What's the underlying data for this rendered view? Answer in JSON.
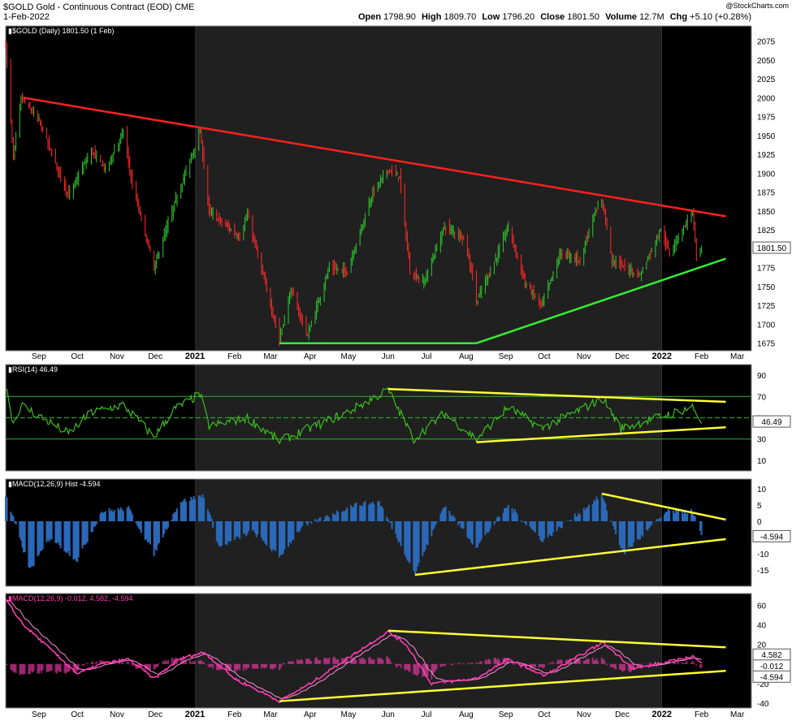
{
  "header": {
    "symbol": "$GOLD",
    "name": "Gold - Continuous Contract (EOD)",
    "exchange": "CME",
    "date": "1-Feb-2022",
    "watermark": "@StockCharts.com",
    "open_label": "Open",
    "open": "1798.90",
    "high_label": "High",
    "high": "1809.70",
    "low_label": "Low",
    "low": "1796.20",
    "close_label": "Close",
    "close": "1801.50",
    "volume_label": "Volume",
    "volume": "12.7M",
    "chg_label": "Chg",
    "chg": "+5.10 (+0.28%)"
  },
  "x_axis": {
    "labels": [
      "Sep",
      "Oct",
      "Nov",
      "Dec",
      "2021",
      "Feb",
      "Mar",
      "Apr",
      "May",
      "Jun",
      "Jul",
      "Aug",
      "Sep",
      "Oct",
      "Nov",
      "Dec",
      "2022",
      "Feb",
      "Mar"
    ],
    "bold": [
      false,
      false,
      false,
      false,
      true,
      false,
      false,
      false,
      false,
      false,
      false,
      false,
      false,
      false,
      false,
      false,
      true,
      false,
      false
    ]
  },
  "chart_data": [
    {
      "type": "candlestick",
      "title": "$GOLD (Daily) 1801.50 (1 Feb)",
      "ylim": [
        1665,
        2095
      ],
      "y_ticks": [
        1675,
        1700,
        1725,
        1750,
        1775,
        1800,
        1825,
        1850,
        1875,
        1900,
        1925,
        1950,
        1975,
        2000,
        2025,
        2050,
        2075
      ],
      "last_value_label": "1801.50",
      "anchors": [
        {
          "d": "2020-08-06",
          "v": 2070
        },
        {
          "d": "2020-08-12",
          "v": 1920
        },
        {
          "d": "2020-08-18",
          "v": 2000
        },
        {
          "d": "2020-09-01",
          "v": 1970
        },
        {
          "d": "2020-09-24",
          "v": 1870
        },
        {
          "d": "2020-10-12",
          "v": 1930
        },
        {
          "d": "2020-10-23",
          "v": 1905
        },
        {
          "d": "2020-11-06",
          "v": 1955
        },
        {
          "d": "2020-11-13",
          "v": 1885
        },
        {
          "d": "2020-11-30",
          "v": 1775
        },
        {
          "d": "2020-12-16",
          "v": 1860
        },
        {
          "d": "2021-01-05",
          "v": 1955
        },
        {
          "d": "2021-01-12",
          "v": 1850
        },
        {
          "d": "2021-02-05",
          "v": 1815
        },
        {
          "d": "2021-02-11",
          "v": 1845
        },
        {
          "d": "2021-03-02",
          "v": 1720
        },
        {
          "d": "2021-03-08",
          "v": 1680
        },
        {
          "d": "2021-03-17",
          "v": 1745
        },
        {
          "d": "2021-03-30",
          "v": 1685
        },
        {
          "d": "2021-04-16",
          "v": 1775
        },
        {
          "d": "2021-04-30",
          "v": 1770
        },
        {
          "d": "2021-05-20",
          "v": 1875
        },
        {
          "d": "2021-06-01",
          "v": 1905
        },
        {
          "d": "2021-06-10",
          "v": 1895
        },
        {
          "d": "2021-06-18",
          "v": 1770
        },
        {
          "d": "2021-06-29",
          "v": 1755
        },
        {
          "d": "2021-07-15",
          "v": 1830
        },
        {
          "d": "2021-07-30",
          "v": 1815
        },
        {
          "d": "2021-08-06",
          "v": 1765
        },
        {
          "d": "2021-08-09",
          "v": 1730
        },
        {
          "d": "2021-08-25",
          "v": 1790
        },
        {
          "d": "2021-09-03",
          "v": 1830
        },
        {
          "d": "2021-09-16",
          "v": 1755
        },
        {
          "d": "2021-09-29",
          "v": 1725
        },
        {
          "d": "2021-10-14",
          "v": 1795
        },
        {
          "d": "2021-10-29",
          "v": 1785
        },
        {
          "d": "2021-11-10",
          "v": 1850
        },
        {
          "d": "2021-11-16",
          "v": 1860
        },
        {
          "d": "2021-11-23",
          "v": 1785
        },
        {
          "d": "2021-12-15",
          "v": 1765
        },
        {
          "d": "2021-12-31",
          "v": 1825
        },
        {
          "d": "2022-01-07",
          "v": 1795
        },
        {
          "d": "2022-01-25",
          "v": 1850
        },
        {
          "d": "2022-01-28",
          "v": 1790
        },
        {
          "d": "2022-02-01",
          "v": 1801.5
        }
      ],
      "trendlines": [
        {
          "color": "#ff2020",
          "points": [
            {
              "d": "2020-08-20",
              "v": 2000
            },
            {
              "d": "2022-02-20",
              "v": 1843
            }
          ]
        },
        {
          "color": "#33ee33",
          "points": [
            {
              "d": "2021-03-08",
              "v": 1675
            },
            {
              "d": "2021-08-09",
              "v": 1675
            }
          ]
        },
        {
          "color": "#33ee33",
          "points": [
            {
              "d": "2021-08-09",
              "v": 1675
            },
            {
              "d": "2022-02-20",
              "v": 1787
            }
          ]
        }
      ]
    },
    {
      "type": "line",
      "title": "RSI(14) 46.49",
      "ylim": [
        0,
        100
      ],
      "y_ticks": [
        10,
        30,
        50,
        70,
        90
      ],
      "reference_lines": [
        70,
        50,
        30
      ],
      "last_value_label": "46.49",
      "series_color": "#3cbe1e",
      "anchors": [
        {
          "d": "2020-08-06",
          "v": 80
        },
        {
          "d": "2020-08-12",
          "v": 45
        },
        {
          "d": "2020-08-18",
          "v": 62
        },
        {
          "d": "2020-09-24",
          "v": 35
        },
        {
          "d": "2020-10-12",
          "v": 55
        },
        {
          "d": "2020-11-06",
          "v": 62
        },
        {
          "d": "2020-11-30",
          "v": 32
        },
        {
          "d": "2020-12-16",
          "v": 58
        },
        {
          "d": "2021-01-05",
          "v": 72
        },
        {
          "d": "2021-01-12",
          "v": 42
        },
        {
          "d": "2021-02-11",
          "v": 50
        },
        {
          "d": "2021-03-08",
          "v": 28
        },
        {
          "d": "2021-04-30",
          "v": 55
        },
        {
          "d": "2021-06-01",
          "v": 76
        },
        {
          "d": "2021-06-21",
          "v": 30
        },
        {
          "d": "2021-07-15",
          "v": 54
        },
        {
          "d": "2021-08-09",
          "v": 30
        },
        {
          "d": "2021-09-03",
          "v": 60
        },
        {
          "d": "2021-09-29",
          "v": 40
        },
        {
          "d": "2021-11-16",
          "v": 68
        },
        {
          "d": "2021-11-30",
          "v": 40
        },
        {
          "d": "2022-01-25",
          "v": 60
        },
        {
          "d": "2022-02-01",
          "v": 46.49
        }
      ],
      "trendlines": [
        {
          "color": "#ffff33",
          "points": [
            {
              "d": "2021-06-01",
              "v": 77
            },
            {
              "d": "2022-02-20",
              "v": 65
            }
          ]
        },
        {
          "color": "#ffff33",
          "points": [
            {
              "d": "2021-08-09",
              "v": 27
            },
            {
              "d": "2022-02-20",
              "v": 41
            }
          ]
        }
      ]
    },
    {
      "type": "bar",
      "title": "MACD(12,26,9) Hist -4.594",
      "ylim": [
        -20,
        13
      ],
      "y_ticks": [
        -15,
        -10,
        -5,
        0,
        5,
        10
      ],
      "last_value_label": "-4.594",
      "series_color": "#2a68b8",
      "anchors": [
        {
          "d": "2020-08-06",
          "v": 8
        },
        {
          "d": "2020-08-25",
          "v": -15
        },
        {
          "d": "2020-09-10",
          "v": -5
        },
        {
          "d": "2020-10-01",
          "v": -12
        },
        {
          "d": "2020-10-20",
          "v": 3
        },
        {
          "d": "2020-11-10",
          "v": 4
        },
        {
          "d": "2020-11-30",
          "v": -10
        },
        {
          "d": "2020-12-20",
          "v": 6
        },
        {
          "d": "2021-01-08",
          "v": 8
        },
        {
          "d": "2021-01-20",
          "v": -8
        },
        {
          "d": "2021-02-15",
          "v": -3
        },
        {
          "d": "2021-03-08",
          "v": -11
        },
        {
          "d": "2021-03-25",
          "v": -2
        },
        {
          "d": "2021-05-05",
          "v": 5
        },
        {
          "d": "2021-05-25",
          "v": 6
        },
        {
          "d": "2021-06-22",
          "v": -16
        },
        {
          "d": "2021-07-15",
          "v": 5
        },
        {
          "d": "2021-08-09",
          "v": -8
        },
        {
          "d": "2021-09-03",
          "v": 5
        },
        {
          "d": "2021-09-30",
          "v": -6
        },
        {
          "d": "2021-11-15",
          "v": 8
        },
        {
          "d": "2021-12-02",
          "v": -10
        },
        {
          "d": "2022-01-05",
          "v": 3
        },
        {
          "d": "2022-01-25",
          "v": 3
        },
        {
          "d": "2022-02-01",
          "v": -4.594
        }
      ],
      "trendlines": [
        {
          "color": "#ffff33",
          "points": [
            {
              "d": "2021-11-15",
              "v": 8.5
            },
            {
              "d": "2022-02-20",
              "v": 0.5
            }
          ]
        },
        {
          "color": "#ffff33",
          "points": [
            {
              "d": "2021-06-22",
              "v": -16.5
            },
            {
              "d": "2022-02-20",
              "v": -5.5
            }
          ]
        }
      ]
    },
    {
      "type": "line",
      "title": "MACD(12,26,9) -0.012, 4.582, -4.594",
      "ylim": [
        -45,
        72
      ],
      "y_ticks": [
        -40,
        -20,
        0,
        20,
        40,
        60
      ],
      "last_value_labels": [
        "4.582",
        "-0.012",
        "-4.594"
      ],
      "series_color": "#ff3cb4",
      "hist_color": "#ff3cb4",
      "anchors": [
        {
          "d": "2020-08-06",
          "v": 65
        },
        {
          "d": "2020-08-20",
          "v": 40
        },
        {
          "d": "2020-09-10",
          "v": 15
        },
        {
          "d": "2020-10-01",
          "v": -10
        },
        {
          "d": "2020-10-20",
          "v": 0
        },
        {
          "d": "2020-11-10",
          "v": 5
        },
        {
          "d": "2020-11-30",
          "v": -15
        },
        {
          "d": "2020-12-20",
          "v": 5
        },
        {
          "d": "2021-01-08",
          "v": 12
        },
        {
          "d": "2021-02-01",
          "v": -15
        },
        {
          "d": "2021-03-08",
          "v": -38
        },
        {
          "d": "2021-04-01",
          "v": -20
        },
        {
          "d": "2021-05-05",
          "v": 10
        },
        {
          "d": "2021-06-01",
          "v": 33
        },
        {
          "d": "2021-06-15",
          "v": 20
        },
        {
          "d": "2021-07-05",
          "v": -20
        },
        {
          "d": "2021-08-09",
          "v": -15
        },
        {
          "d": "2021-09-03",
          "v": 5
        },
        {
          "d": "2021-10-01",
          "v": -12
        },
        {
          "d": "2021-11-16",
          "v": 22
        },
        {
          "d": "2021-12-10",
          "v": -5
        },
        {
          "d": "2022-01-10",
          "v": 3
        },
        {
          "d": "2022-01-25",
          "v": 8
        },
        {
          "d": "2022-02-01",
          "v": -0.012
        }
      ],
      "trendlines": [
        {
          "color": "#ffff33",
          "points": [
            {
              "d": "2021-06-01",
              "v": 34
            },
            {
              "d": "2022-02-20",
              "v": 17
            }
          ]
        },
        {
          "color": "#ffff33",
          "points": [
            {
              "d": "2021-03-08",
              "v": -38
            },
            {
              "d": "2022-02-20",
              "v": -7
            }
          ]
        }
      ]
    }
  ]
}
